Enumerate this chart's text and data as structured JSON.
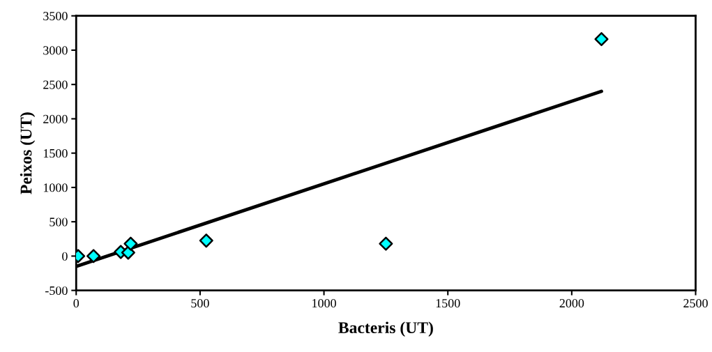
{
  "chart_data": {
    "type": "scatter",
    "xlabel": "Bacteris (UT)",
    "ylabel": "Peixos (UT)",
    "xlim": [
      0,
      2500
    ],
    "xticks": [
      0,
      500,
      1000,
      1500,
      2000,
      2500
    ],
    "ylim": [
      -500,
      3500
    ],
    "yticks": [
      -500,
      0,
      500,
      1000,
      1500,
      2000,
      2500,
      3000,
      3500
    ],
    "grid": false,
    "marker": "diamond",
    "series": [
      {
        "color": "#00ffff",
        "x": [
          0,
          8,
          70,
          180,
          210,
          220,
          525,
          1250,
          2120
        ],
        "values": [
          0,
          0,
          0,
          60,
          50,
          180,
          225,
          180,
          3160
        ]
      },
      {
        "type": "line",
        "color": "#000000",
        "line_style": "solid",
        "marker": "none",
        "x": [
          0,
          2120
        ],
        "values": [
          -150,
          2400
        ]
      }
    ]
  }
}
